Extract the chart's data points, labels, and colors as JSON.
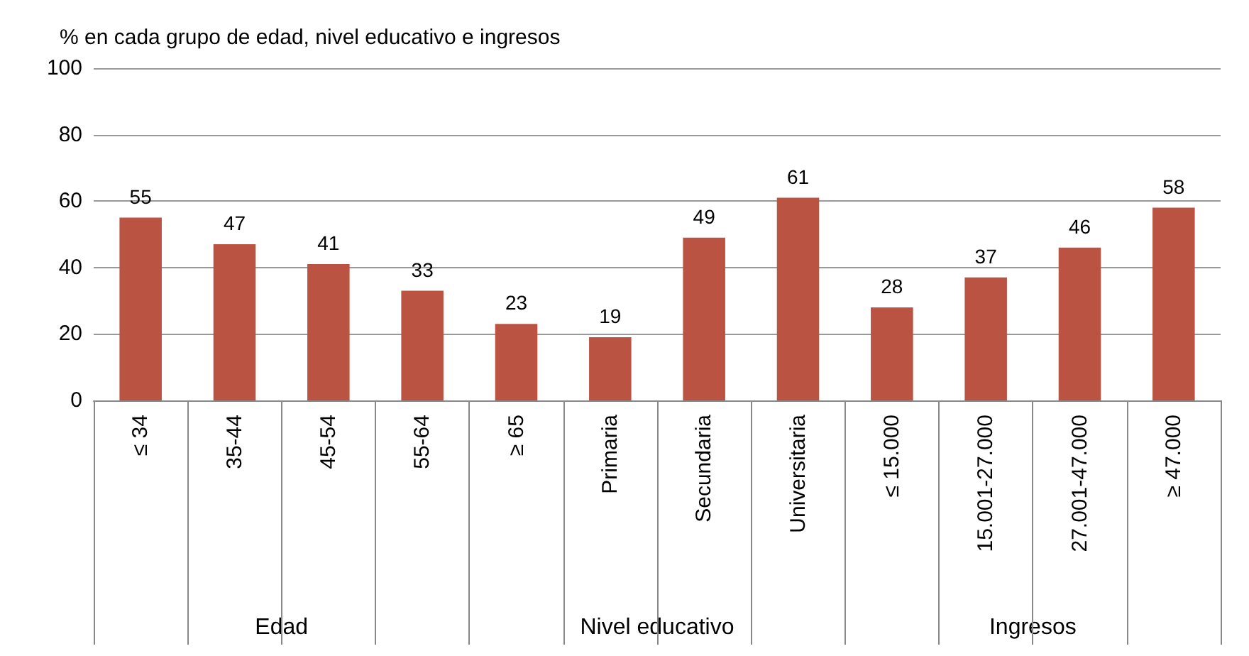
{
  "chart_data": {
    "type": "bar",
    "ylabel": "% en cada grupo de edad, nivel educativo e ingresos",
    "categories": [
      "≤ 34",
      "35-44",
      "45-54",
      "55-64",
      "≥ 65",
      "Primaria",
      "Secundaria",
      "Universitaria",
      "≤ 15.000",
      "15.001-27.000",
      "27.001-47.000",
      "≥ 47.000"
    ],
    "values": [
      55,
      47,
      41,
      33,
      23,
      19,
      49,
      61,
      28,
      37,
      46,
      58
    ],
    "color": "#bb5343",
    "ylim": [
      0,
      100
    ],
    "yticks": [
      0,
      20,
      40,
      60,
      80,
      100
    ],
    "grid": "y",
    "data_labels": true,
    "annotations": [
      "Edad",
      "Nivel educativo",
      "Ingresos"
    ]
  }
}
